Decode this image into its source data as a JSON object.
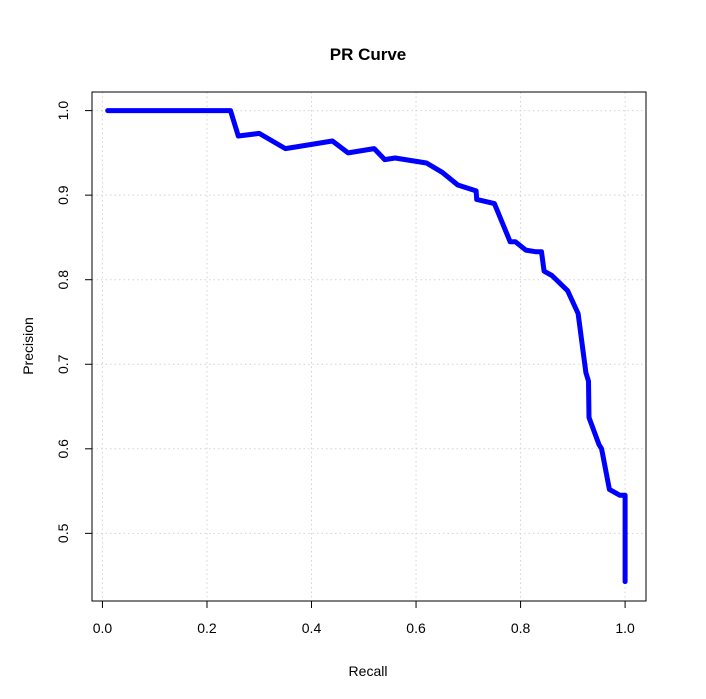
{
  "chart_data": {
    "type": "line",
    "title": "PR Curve",
    "xlabel": "Recall",
    "ylabel": "Precision",
    "xlim": [
      -0.02,
      1.04
    ],
    "ylim": [
      0.42,
      1.022
    ],
    "x_ticks": [
      0.0,
      0.2,
      0.4,
      0.6,
      0.8,
      1.0
    ],
    "x_tick_labels": [
      "0.0",
      "0.2",
      "0.4",
      "0.6",
      "0.8",
      "1.0"
    ],
    "y_ticks": [
      0.5,
      0.6,
      0.7,
      0.8,
      0.9,
      1.0
    ],
    "y_tick_labels": [
      "0.5",
      "0.6",
      "0.7",
      "0.8",
      "0.9",
      "1.0"
    ],
    "grid": true,
    "line_color": "#0000ff",
    "series": [
      {
        "x": [
          0.01,
          0.245,
          0.26,
          0.3,
          0.35,
          0.44,
          0.47,
          0.52,
          0.54,
          0.56,
          0.62,
          0.65,
          0.68,
          0.715,
          0.716,
          0.75,
          0.78,
          0.79,
          0.81,
          0.83,
          0.84,
          0.845,
          0.86,
          0.89,
          0.91,
          0.925,
          0.93,
          0.931,
          0.95,
          0.955,
          0.97,
          0.99,
          1.0,
          1.0
        ],
        "y": [
          1.0,
          1.0,
          0.97,
          0.973,
          0.955,
          0.964,
          0.95,
          0.955,
          0.942,
          0.944,
          0.938,
          0.927,
          0.912,
          0.905,
          0.895,
          0.89,
          0.845,
          0.845,
          0.835,
          0.833,
          0.833,
          0.81,
          0.805,
          0.787,
          0.76,
          0.69,
          0.68,
          0.637,
          0.605,
          0.6,
          0.552,
          0.545,
          0.545,
          0.443
        ]
      }
    ]
  }
}
